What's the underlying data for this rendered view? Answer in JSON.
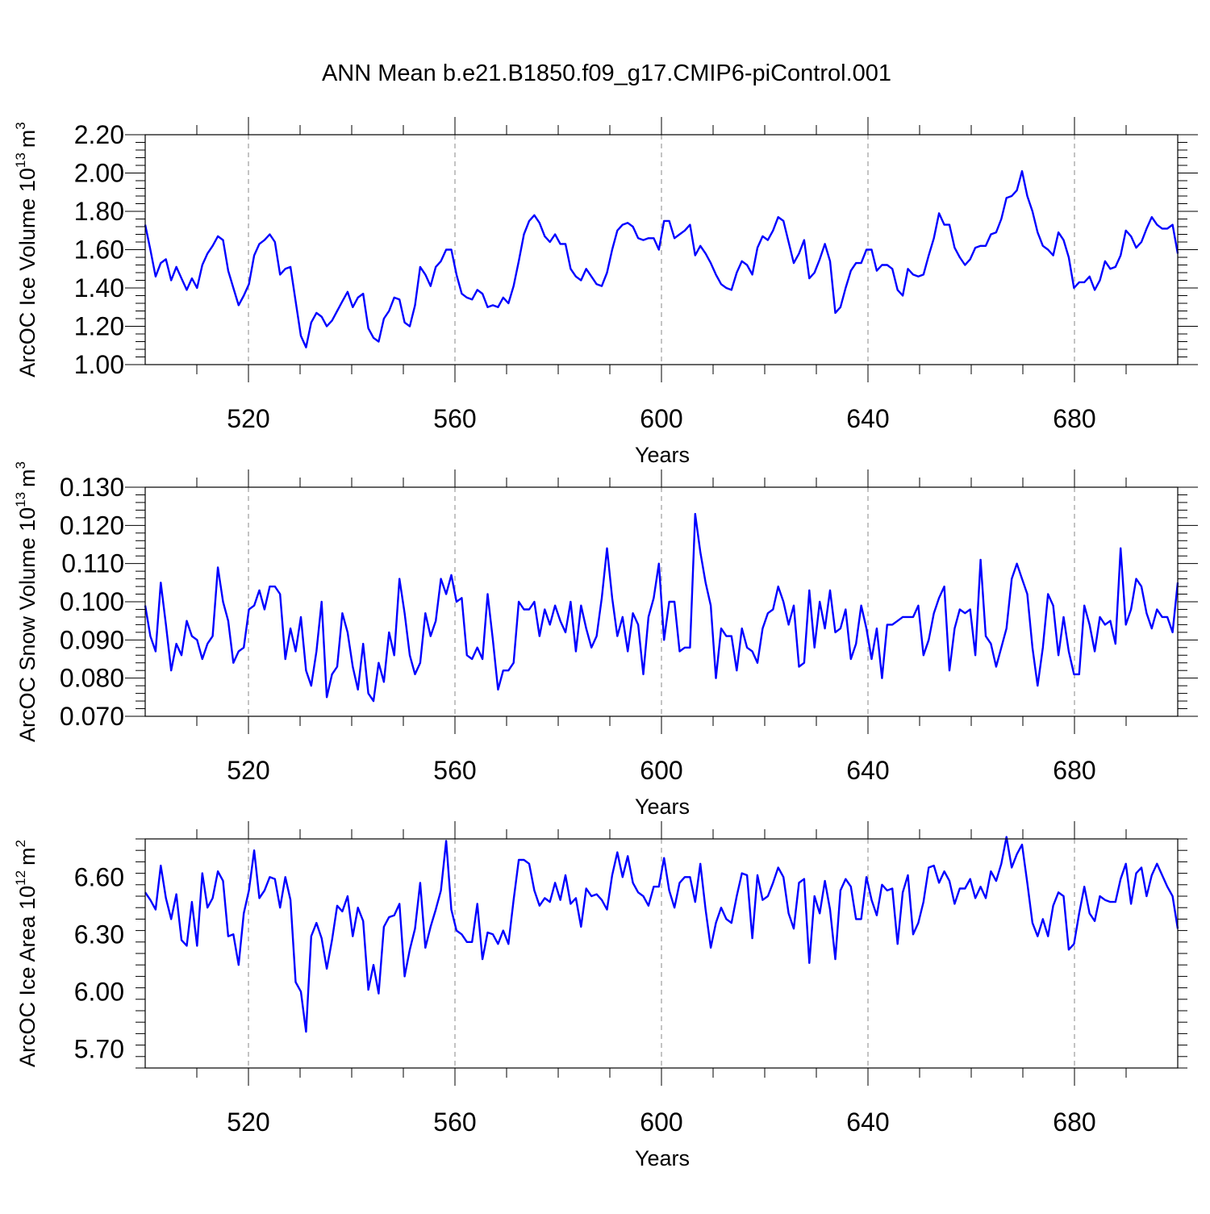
{
  "title": "ANN Mean b.e21.B1850.f09_g17.CMIP6-piControl.001",
  "colors": {
    "line": "#0000ff",
    "axis": "#000000",
    "grid": "#888888"
  },
  "chart_data": [
    {
      "type": "line",
      "ylabel_text": "ArcOC Ice Volume 10",
      "ylabel_exp": "13",
      "ylabel_unit": "m",
      "ylabel_unit_exp": "3",
      "xlabel": "Years",
      "xlim": [
        500,
        700
      ],
      "ylim": [
        1.0,
        2.2
      ],
      "yticks": [
        "1.00",
        "1.20",
        "1.40",
        "1.60",
        "1.80",
        "2.00",
        "2.20"
      ],
      "xticks": [
        "520",
        "560",
        "600",
        "640",
        "680"
      ],
      "series": [
        {
          "name": "Ice Volume",
          "values": [
            1.73,
            1.6,
            1.46,
            1.53,
            1.55,
            1.44,
            1.51,
            1.45,
            1.39,
            1.45,
            1.4,
            1.52,
            1.58,
            1.62,
            1.67,
            1.65,
            1.49,
            1.4,
            1.31,
            1.36,
            1.42,
            1.57,
            1.63,
            1.65,
            1.68,
            1.64,
            1.47,
            1.5,
            1.51,
            1.33,
            1.15,
            1.09,
            1.22,
            1.27,
            1.25,
            1.2,
            1.23,
            1.28,
            1.33,
            1.38,
            1.3,
            1.35,
            1.37,
            1.19,
            1.14,
            1.12,
            1.24,
            1.28,
            1.35,
            1.34,
            1.22,
            1.2,
            1.31,
            1.51,
            1.47,
            1.41,
            1.51,
            1.54,
            1.6,
            1.6,
            1.47,
            1.37,
            1.35,
            1.34,
            1.39,
            1.37,
            1.3,
            1.31,
            1.3,
            1.35,
            1.32,
            1.41,
            1.54,
            1.68,
            1.75,
            1.78,
            1.74,
            1.67,
            1.64,
            1.68,
            1.63,
            1.63,
            1.5,
            1.46,
            1.44,
            1.5,
            1.46,
            1.42,
            1.41,
            1.48,
            1.6,
            1.7,
            1.73,
            1.74,
            1.72,
            1.66,
            1.65,
            1.66,
            1.66,
            1.6,
            1.75,
            1.75,
            1.66,
            1.68,
            1.7,
            1.73,
            1.57,
            1.62,
            1.58,
            1.53,
            1.47,
            1.42,
            1.4,
            1.39,
            1.48,
            1.54,
            1.52,
            1.47,
            1.61,
            1.67,
            1.65,
            1.7,
            1.77,
            1.75,
            1.64,
            1.53,
            1.58,
            1.65,
            1.45,
            1.48,
            1.55,
            1.63,
            1.54,
            1.27,
            1.3,
            1.4,
            1.49,
            1.53,
            1.53,
            1.6,
            1.6,
            1.49,
            1.52,
            1.52,
            1.5,
            1.39,
            1.36,
            1.5,
            1.47,
            1.46,
            1.47,
            1.57,
            1.66,
            1.79,
            1.73,
            1.73,
            1.61,
            1.56,
            1.52,
            1.55,
            1.61,
            1.62,
            1.62,
            1.68,
            1.69,
            1.76,
            1.87,
            1.88,
            1.91,
            2.01,
            1.88,
            1.8,
            1.69,
            1.62,
            1.6,
            1.57,
            1.69,
            1.65,
            1.56,
            1.4,
            1.43,
            1.43,
            1.46,
            1.39,
            1.44,
            1.54,
            1.5,
            1.51,
            1.57,
            1.7,
            1.67,
            1.61,
            1.64,
            1.71,
            1.77,
            1.73,
            1.71,
            1.71,
            1.73,
            1.58
          ]
        }
      ]
    },
    {
      "type": "line",
      "ylabel_text": "ArcOC Snow Volume 10",
      "ylabel_exp": "13",
      "ylabel_unit": "m",
      "ylabel_unit_exp": "3",
      "xlabel": "Years",
      "xlim": [
        500,
        700
      ],
      "ylim": [
        0.07,
        0.13
      ],
      "yticks": [
        "0.070",
        "0.080",
        "0.090",
        "0.100",
        "0.110",
        "0.120",
        "0.130"
      ],
      "xticks": [
        "520",
        "560",
        "600",
        "640",
        "680"
      ],
      "series": [
        {
          "name": "Snow Volume",
          "values": [
            0.099,
            0.091,
            0.087,
            0.105,
            0.094,
            0.082,
            0.089,
            0.086,
            0.095,
            0.091,
            0.09,
            0.085,
            0.089,
            0.091,
            0.109,
            0.1,
            0.095,
            0.084,
            0.087,
            0.088,
            0.098,
            0.099,
            0.103,
            0.098,
            0.104,
            0.104,
            0.102,
            0.085,
            0.093,
            0.087,
            0.096,
            0.082,
            0.078,
            0.087,
            0.1,
            0.075,
            0.081,
            0.083,
            0.097,
            0.092,
            0.083,
            0.077,
            0.089,
            0.076,
            0.074,
            0.084,
            0.079,
            0.092,
            0.086,
            0.106,
            0.097,
            0.086,
            0.081,
            0.084,
            0.097,
            0.091,
            0.095,
            0.106,
            0.102,
            0.107,
            0.1,
            0.101,
            0.086,
            0.085,
            0.088,
            0.085,
            0.102,
            0.09,
            0.077,
            0.082,
            0.082,
            0.084,
            0.1,
            0.098,
            0.098,
            0.1,
            0.091,
            0.098,
            0.094,
            0.099,
            0.095,
            0.092,
            0.1,
            0.087,
            0.099,
            0.093,
            0.088,
            0.091,
            0.101,
            0.114,
            0.101,
            0.091,
            0.096,
            0.087,
            0.097,
            0.094,
            0.081,
            0.096,
            0.101,
            0.11,
            0.09,
            0.1,
            0.1,
            0.087,
            0.088,
            0.088,
            0.123,
            0.113,
            0.105,
            0.099,
            0.08,
            0.093,
            0.091,
            0.091,
            0.082,
            0.093,
            0.088,
            0.087,
            0.084,
            0.093,
            0.097,
            0.098,
            0.104,
            0.1,
            0.094,
            0.099,
            0.083,
            0.084,
            0.103,
            0.088,
            0.1,
            0.093,
            0.103,
            0.092,
            0.093,
            0.098,
            0.085,
            0.089,
            0.099,
            0.093,
            0.085,
            0.093,
            0.08,
            0.094,
            0.094,
            0.095,
            0.096,
            0.096,
            0.096,
            0.099,
            0.086,
            0.09,
            0.097,
            0.101,
            0.104,
            0.082,
            0.093,
            0.098,
            0.097,
            0.098,
            0.086,
            0.111,
            0.091,
            0.089,
            0.083,
            0.088,
            0.093,
            0.106,
            0.11,
            0.106,
            0.102,
            0.088,
            0.078,
            0.088,
            0.102,
            0.099,
            0.086,
            0.096,
            0.087,
            0.081,
            0.081,
            0.099,
            0.094,
            0.087,
            0.096,
            0.094,
            0.095,
            0.089,
            0.114,
            0.094,
            0.098,
            0.106,
            0.104,
            0.097,
            0.093,
            0.098,
            0.096,
            0.096,
            0.092,
            0.105
          ]
        }
      ]
    },
    {
      "type": "line",
      "ylabel_text": "ArcOC Ice Area 10",
      "ylabel_exp": "12",
      "ylabel_unit": "m",
      "ylabel_unit_exp": "2",
      "xlabel": "Years",
      "xlim": [
        500,
        700
      ],
      "ylim": [
        5.6,
        6.8
      ],
      "yticks": [
        "5.70",
        "6.00",
        "6.30",
        "6.60"
      ],
      "xticks": [
        "520",
        "560",
        "600",
        "640",
        "680"
      ],
      "series": [
        {
          "name": "Ice Area",
          "values": [
            6.52,
            6.48,
            6.43,
            6.66,
            6.49,
            6.38,
            6.51,
            6.27,
            6.24,
            6.47,
            6.24,
            6.62,
            6.44,
            6.49,
            6.63,
            6.58,
            6.29,
            6.3,
            6.14,
            6.41,
            6.53,
            6.74,
            6.49,
            6.53,
            6.6,
            6.59,
            6.44,
            6.6,
            6.48,
            6.05,
            6.0,
            5.79,
            6.29,
            6.36,
            6.28,
            6.12,
            6.27,
            6.45,
            6.42,
            6.5,
            6.29,
            6.44,
            6.37,
            6.01,
            6.14,
            5.99,
            6.34,
            6.39,
            6.4,
            6.46,
            6.08,
            6.22,
            6.33,
            6.57,
            6.23,
            6.34,
            6.43,
            6.53,
            6.79,
            6.43,
            6.32,
            6.3,
            6.26,
            6.26,
            6.46,
            6.17,
            6.31,
            6.3,
            6.25,
            6.32,
            6.25,
            6.48,
            6.69,
            6.69,
            6.67,
            6.53,
            6.45,
            6.49,
            6.47,
            6.57,
            6.48,
            6.61,
            6.46,
            6.49,
            6.34,
            6.54,
            6.5,
            6.51,
            6.48,
            6.43,
            6.61,
            6.73,
            6.6,
            6.71,
            6.57,
            6.52,
            6.5,
            6.45,
            6.55,
            6.55,
            6.7,
            6.53,
            6.44,
            6.57,
            6.6,
            6.6,
            6.47,
            6.67,
            6.43,
            6.23,
            6.36,
            6.44,
            6.38,
            6.36,
            6.5,
            6.62,
            6.61,
            6.28,
            6.61,
            6.48,
            6.5,
            6.57,
            6.65,
            6.6,
            6.41,
            6.33,
            6.57,
            6.59,
            6.15,
            6.5,
            6.41,
            6.58,
            6.43,
            6.17,
            6.53,
            6.59,
            6.55,
            6.38,
            6.38,
            6.6,
            6.48,
            6.4,
            6.56,
            6.53,
            6.54,
            6.25,
            6.52,
            6.61,
            6.3,
            6.36,
            6.47,
            6.65,
            6.66,
            6.57,
            6.63,
            6.58,
            6.46,
            6.54,
            6.54,
            6.59,
            6.49,
            6.55,
            6.49,
            6.63,
            6.58,
            6.67,
            6.81,
            6.65,
            6.72,
            6.77,
            6.57,
            6.36,
            6.29,
            6.38,
            6.29,
            6.45,
            6.52,
            6.5,
            6.22,
            6.25,
            6.41,
            6.55,
            6.41,
            6.37,
            6.5,
            6.48,
            6.47,
            6.47,
            6.59,
            6.67,
            6.46,
            6.62,
            6.65,
            6.5,
            6.61,
            6.67,
            6.61,
            6.55,
            6.5,
            6.33
          ]
        }
      ]
    }
  ]
}
